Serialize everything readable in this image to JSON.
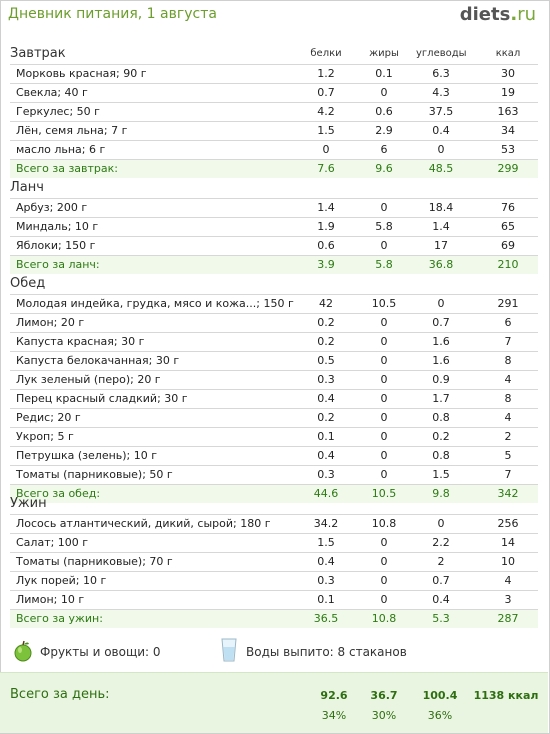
{
  "page": {
    "title": "Дневник питания, 1 августа",
    "logo": {
      "main": "diets",
      "dot": ".",
      "tld": "ru"
    }
  },
  "columns": {
    "protein": "белки",
    "fat": "жиры",
    "carbs": "углеводы",
    "kcal": "ккал"
  },
  "meals": [
    {
      "name": "Завтрак",
      "items": [
        {
          "name": "Морковь красная; 90 г",
          "protein": "1.2",
          "fat": "0.1",
          "carbs": "6.3",
          "kcal": "30"
        },
        {
          "name": "Свекла; 40 г",
          "protein": "0.7",
          "fat": "0",
          "carbs": "4.3",
          "kcal": "19"
        },
        {
          "name": "Геркулес; 50 г",
          "protein": "4.2",
          "fat": "0.6",
          "carbs": "37.5",
          "kcal": "163"
        },
        {
          "name": "Лён, семя льна; 7 г",
          "protein": "1.5",
          "fat": "2.9",
          "carbs": "0.4",
          "kcal": "34"
        },
        {
          "name": "масло льна; 6 г",
          "protein": "0",
          "fat": "6",
          "carbs": "0",
          "kcal": "53"
        }
      ],
      "total": {
        "name": "Всего за завтрак:",
        "protein": "7.6",
        "fat": "9.6",
        "carbs": "48.5",
        "kcal": "299"
      }
    },
    {
      "name": "Ланч",
      "items": [
        {
          "name": "Арбуз; 200 г",
          "protein": "1.4",
          "fat": "0",
          "carbs": "18.4",
          "kcal": "76"
        },
        {
          "name": "Миндаль; 10 г",
          "protein": "1.9",
          "fat": "5.8",
          "carbs": "1.4",
          "kcal": "65"
        },
        {
          "name": "Яблоки; 150 г",
          "protein": "0.6",
          "fat": "0",
          "carbs": "17",
          "kcal": "69"
        }
      ],
      "total": {
        "name": "Всего за ланч:",
        "protein": "3.9",
        "fat": "5.8",
        "carbs": "36.8",
        "kcal": "210"
      }
    },
    {
      "name": "Обед",
      "items": [
        {
          "name": "Молодая индейка, грудка, мясо и кожа...; 150 г",
          "protein": "42",
          "fat": "10.5",
          "carbs": "0",
          "kcal": "291"
        },
        {
          "name": "Лимон; 20 г",
          "protein": "0.2",
          "fat": "0",
          "carbs": "0.7",
          "kcal": "6"
        },
        {
          "name": "Капуста красная; 30 г",
          "protein": "0.2",
          "fat": "0",
          "carbs": "1.6",
          "kcal": "7"
        },
        {
          "name": "Капуста белокачанная; 30 г",
          "protein": "0.5",
          "fat": "0",
          "carbs": "1.6",
          "kcal": "8"
        },
        {
          "name": "Лук зеленый (перо); 20 г",
          "protein": "0.3",
          "fat": "0",
          "carbs": "0.9",
          "kcal": "4"
        },
        {
          "name": "Перец красный сладкий; 30 г",
          "protein": "0.4",
          "fat": "0",
          "carbs": "1.7",
          "kcal": "8"
        },
        {
          "name": "Редис; 20 г",
          "protein": "0.2",
          "fat": "0",
          "carbs": "0.8",
          "kcal": "4"
        },
        {
          "name": "Укроп; 5 г",
          "protein": "0.1",
          "fat": "0",
          "carbs": "0.2",
          "kcal": "2"
        },
        {
          "name": "Петрушка (зелень); 10 г",
          "protein": "0.4",
          "fat": "0",
          "carbs": "0.8",
          "kcal": "5"
        },
        {
          "name": "Томаты (парниковые); 50 г",
          "protein": "0.3",
          "fat": "0",
          "carbs": "1.5",
          "kcal": "7"
        }
      ],
      "total": {
        "name": "Всего за обед:",
        "protein": "44.6",
        "fat": "10.5",
        "carbs": "9.8",
        "kcal": "342"
      }
    },
    {
      "name": "Ужин",
      "items": [
        {
          "name": "Лосось атлантический, дикий, сырой; 180 г",
          "protein": "34.2",
          "fat": "10.8",
          "carbs": "0",
          "kcal": "256"
        },
        {
          "name": "Салат; 100 г",
          "protein": "1.5",
          "fat": "0",
          "carbs": "2.2",
          "kcal": "14"
        },
        {
          "name": "Томаты (парниковые); 70 г",
          "protein": "0.4",
          "fat": "0",
          "carbs": "2",
          "kcal": "10"
        },
        {
          "name": "Лук порей; 10 г",
          "protein": "0.3",
          "fat": "0",
          "carbs": "0.7",
          "kcal": "4"
        },
        {
          "name": "Лимон; 10 г",
          "protein": "0.1",
          "fat": "0",
          "carbs": "0.4",
          "kcal": "3"
        }
      ],
      "total": {
        "name": "Всего за ужин:",
        "protein": "36.5",
        "fat": "10.8",
        "carbs": "5.3",
        "kcal": "287"
      }
    }
  ],
  "misc": {
    "fruits_icon": "apple-icon",
    "fruits_label": "Фрукты и овощи: 0",
    "water_icon": "water-glass-icon",
    "water_label": "Воды выпито: 8 стаканов"
  },
  "day": {
    "label": "Всего за день:",
    "protein": "92.6",
    "fat": "36.7",
    "carbs": "100.4",
    "kcal": "1138 ккал",
    "protein_pct": "34%",
    "fat_pct": "30%",
    "carbs_pct": "36%"
  },
  "colors": {
    "accent": "#6c9e2c",
    "total_text": "#2d7a12",
    "total_bg": "#f0f9ea"
  }
}
